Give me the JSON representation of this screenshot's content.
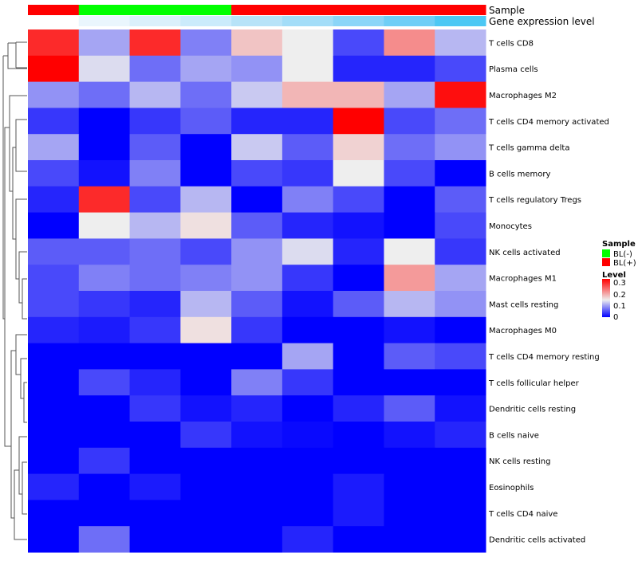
{
  "chart_data": {
    "type": "heatmap",
    "annotation_rows": [
      "Sample",
      "Gene expression level"
    ],
    "sample_groups": [
      "BL(+)",
      "BL(-)",
      "BL(-)",
      "BL(-)",
      "BL(+)",
      "BL(+)",
      "BL(+)",
      "BL(+)",
      "BL(+)"
    ],
    "gene_expression_colors": [
      "#ffffff",
      "#eaf6fd",
      "#dbf0fb",
      "#cbebfb",
      "#b7e3f8",
      "#a3ddf8",
      "#8bd5f8",
      "#6fcef6",
      "#4cc8f4"
    ],
    "rows": [
      "T cells CD8",
      "Plasma cells",
      "Macrophages M2",
      "T cells CD4 memory activated",
      "T cells gamma delta",
      "B cells memory",
      "T cells regulatory  Tregs",
      "Monocytes",
      "NK cells activated",
      "Macrophages M1",
      "Mast cells resting",
      "Macrophages M0",
      "T cells CD4 memory resting",
      "T cells follicular helper",
      "Dendritic cells resting",
      "B cells naive",
      "NK cells resting",
      "Eosinophils",
      "T cells CD4 naive",
      "Dendritic cells activated"
    ],
    "values": [
      [
        0.27,
        0.09,
        0.27,
        0.07,
        0.16,
        0.13,
        0.04,
        0.2,
        0.1
      ],
      [
        0.3,
        0.12,
        0.06,
        0.09,
        0.08,
        0.13,
        0.02,
        0.02,
        0.04
      ],
      [
        0.08,
        0.06,
        0.1,
        0.06,
        0.11,
        0.17,
        0.17,
        0.09,
        0.29
      ],
      [
        0.03,
        0,
        0.03,
        0.05,
        0.02,
        0.02,
        0.3,
        0.04,
        0.06
      ],
      [
        0.09,
        0,
        0.05,
        0,
        0.11,
        0.05,
        0.15,
        0.06,
        0.08
      ],
      [
        0.04,
        0.01,
        0.07,
        0,
        0.04,
        0.03,
        0.13,
        0.04,
        0
      ],
      [
        0.02,
        0.27,
        0.04,
        0.1,
        0,
        0.07,
        0.04,
        0,
        0.05
      ],
      [
        0,
        0.13,
        0.1,
        0.14,
        0.05,
        0.02,
        0.01,
        0,
        0.04
      ],
      [
        0.05,
        0.05,
        0.06,
        0.04,
        0.08,
        0.12,
        0.02,
        0.13,
        0.03
      ],
      [
        0.04,
        0.07,
        0.06,
        0.07,
        0.08,
        0.03,
        0,
        0.19,
        0.09
      ],
      [
        0.04,
        0.03,
        0.02,
        0.1,
        0.05,
        0.01,
        0.05,
        0.1,
        0.08
      ],
      [
        0.02,
        0.015,
        0.03,
        0.14,
        0.03,
        0,
        0,
        0.01,
        0
      ],
      [
        0,
        0,
        0,
        0,
        0,
        0.09,
        0,
        0.05,
        0.04
      ],
      [
        0,
        0.04,
        0.02,
        0,
        0.07,
        0.03,
        0,
        0,
        0
      ],
      [
        0,
        0,
        0.03,
        0.01,
        0.02,
        0,
        0.02,
        0.05,
        0.01
      ],
      [
        0,
        0,
        0,
        0.03,
        0.01,
        0.005,
        0,
        0.01,
        0.02
      ],
      [
        0,
        0.03,
        0,
        0,
        0,
        0,
        0,
        0,
        0
      ],
      [
        0.02,
        0,
        0.015,
        0,
        0,
        0,
        0.015,
        0,
        0
      ],
      [
        0,
        0,
        0,
        0,
        0,
        0,
        0.015,
        0,
        0
      ],
      [
        0,
        0.06,
        0,
        0,
        0,
        0.02,
        0,
        0,
        0
      ]
    ],
    "color_scale": {
      "low": "#0000ff",
      "mid": "#eeeeee",
      "high": "#ff0000",
      "range": [
        0,
        0.3
      ],
      "mid_value": 0.13
    },
    "legend": {
      "sample_title": "Sample",
      "sample_items": [
        {
          "label": "BL(-)",
          "color": "#00ff00"
        },
        {
          "label": "BL(+)",
          "color": "#ff0000"
        }
      ],
      "level_title": "Level",
      "level_ticks": [
        "0.3",
        "0.2",
        "0.1",
        "0"
      ],
      "placement": "right"
    }
  }
}
